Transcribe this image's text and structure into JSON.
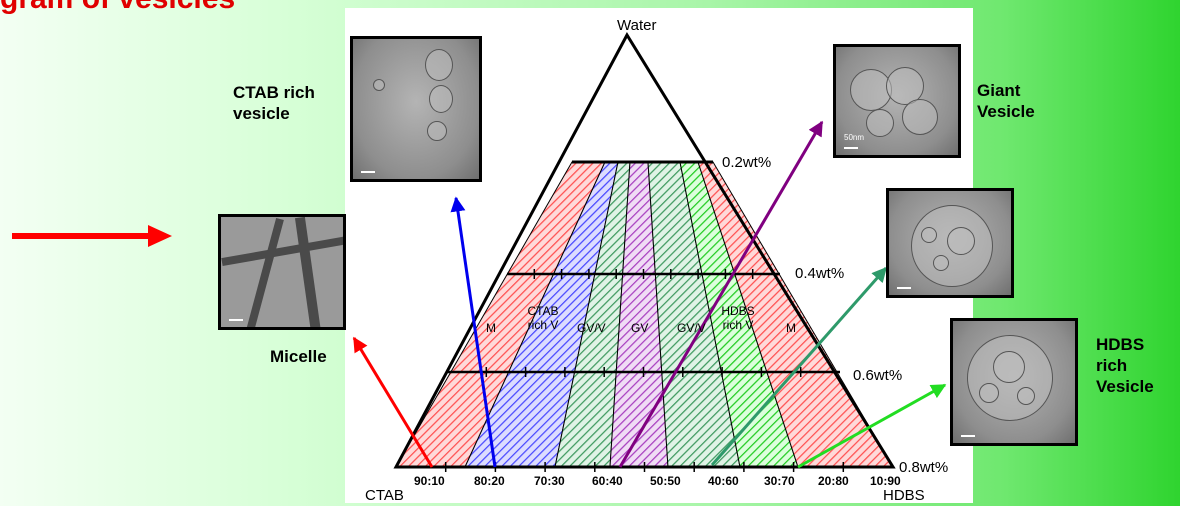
{
  "title": "gram of vesicles",
  "apex_label": "Water",
  "base_left_label": "CTAB",
  "base_right_label": "HDBS",
  "wt_levels": [
    {
      "label": "0.2wt%",
      "frac": 0.25
    },
    {
      "label": "0.4wt%",
      "frac": 0.5
    },
    {
      "label": "0.6wt%",
      "frac": 0.75
    },
    {
      "label": "0.8wt%",
      "frac": 1.0
    }
  ],
  "ratio_labels": [
    "90:10",
    "80:20",
    "70:30",
    "60:40",
    "50:50",
    "40:60",
    "30:70",
    "20:80",
    "10:90"
  ],
  "regions": [
    {
      "label": "M",
      "color": "#ff6060"
    },
    {
      "label": "CTAB rich V",
      "color": "#5050ff"
    },
    {
      "label": "GV/V",
      "color": "#4aa86a"
    },
    {
      "label": "GV",
      "color": "#b04cc8"
    },
    {
      "label": "GV/V",
      "color": "#4aa86a"
    },
    {
      "label": "HDBS rich V",
      "color": "#30d030"
    },
    {
      "label": "M",
      "color": "#ff6060"
    }
  ],
  "images": [
    {
      "label": "CTAB rich vesicle",
      "border": "#0000cc"
    },
    {
      "label": "Micelle",
      "border": "#e02020"
    },
    {
      "label": "Giant Vesicle",
      "border": "#801880"
    },
    {
      "label": "",
      "border": "#3a9a6a"
    },
    {
      "label": "HDBS rich Vesicle",
      "border": "#30d030"
    }
  ],
  "scale_labels": [
    "50nm"
  ],
  "arrow_colors": {
    "red": "#ff0000",
    "blue": "#0000ee",
    "purple": "#800080",
    "teal": "#2e9a6a",
    "green": "#22dd22"
  }
}
